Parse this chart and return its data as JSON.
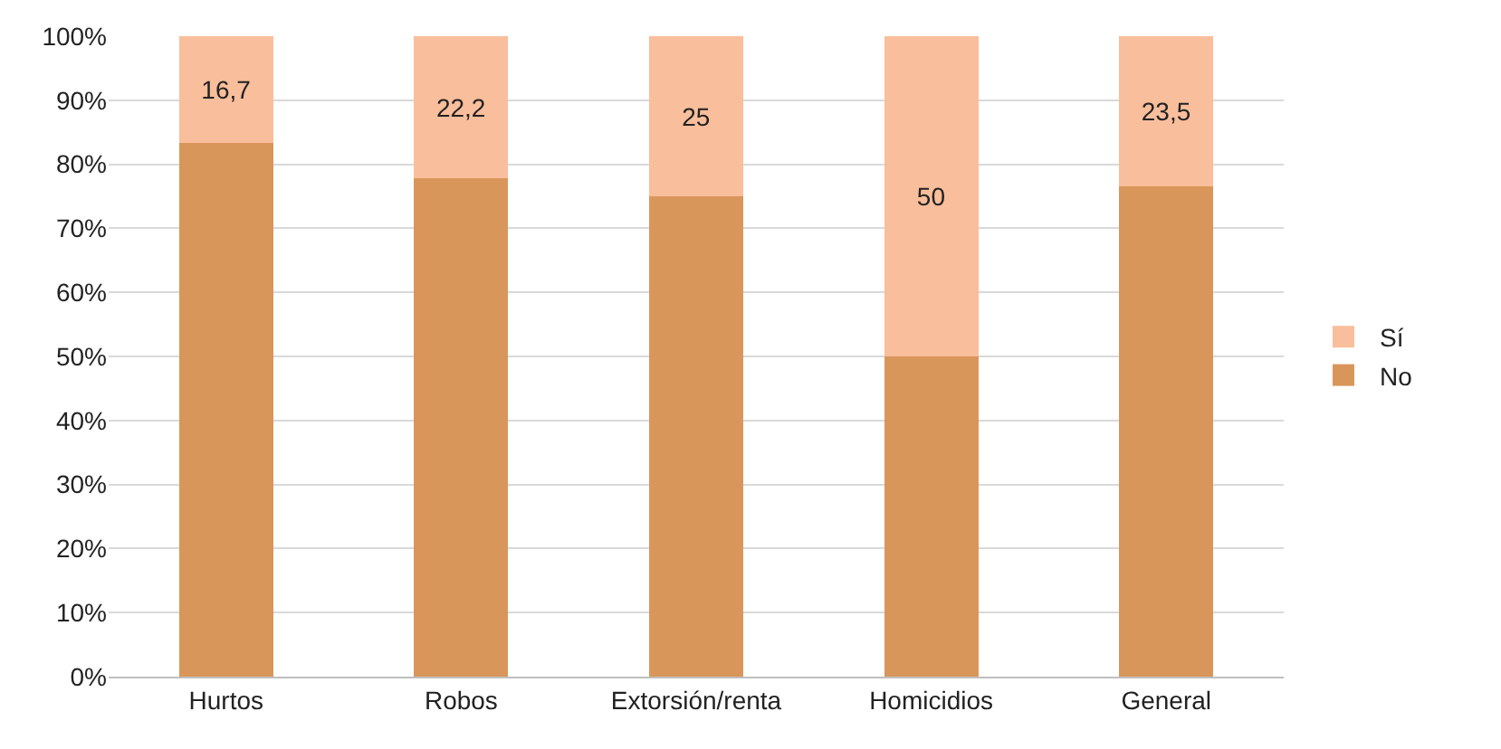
{
  "chart_data": {
    "type": "bar",
    "stacked": true,
    "categories": [
      "Hurtos",
      "Robos",
      "Extorsión/renta",
      "Homicidios",
      "General"
    ],
    "series": [
      {
        "name": "No",
        "color": "#d9965b",
        "values": [
          83.3,
          77.8,
          75,
          50,
          76.5
        ]
      },
      {
        "name": "Sí",
        "color": "#f9be9b",
        "values": [
          16.7,
          22.2,
          25,
          50,
          23.5
        ],
        "value_labels": [
          "16,7",
          "22,2",
          "25",
          "50",
          "23,5"
        ]
      }
    ],
    "ylim": [
      0,
      100
    ],
    "yticks": [
      {
        "value": 0,
        "label": "0%"
      },
      {
        "value": 10,
        "label": "10%"
      },
      {
        "value": 20,
        "label": "20%"
      },
      {
        "value": 30,
        "label": "30%"
      },
      {
        "value": 40,
        "label": "40%"
      },
      {
        "value": 50,
        "label": "50%"
      },
      {
        "value": 60,
        "label": "60%"
      },
      {
        "value": 70,
        "label": "70%"
      },
      {
        "value": 80,
        "label": "80%"
      },
      {
        "value": 90,
        "label": "90%"
      },
      {
        "value": 100,
        "label": "100%"
      }
    ],
    "grid": "y",
    "legend": "right"
  }
}
